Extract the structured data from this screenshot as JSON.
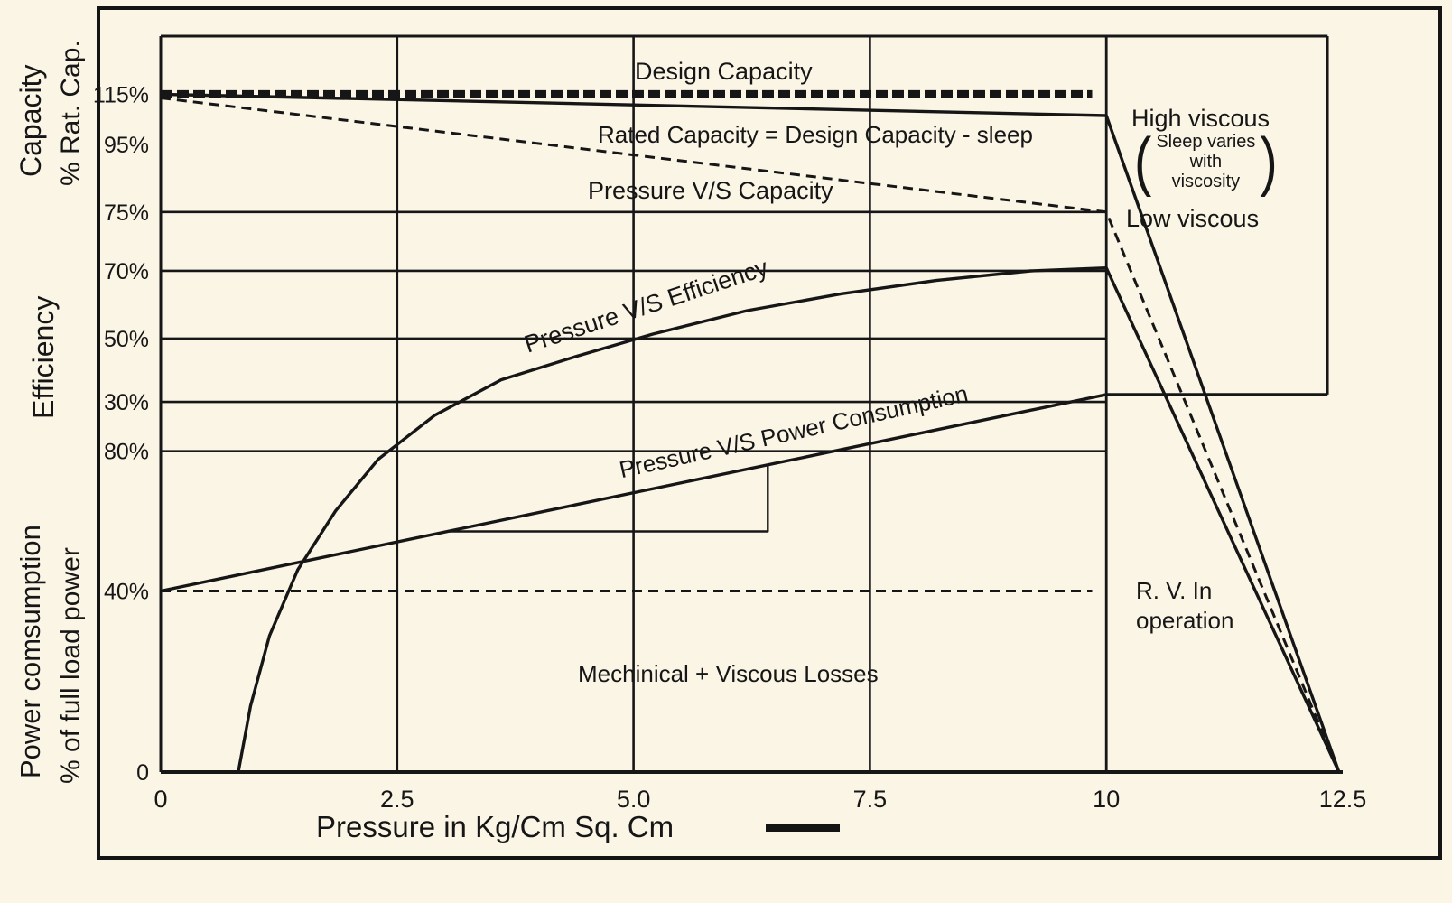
{
  "page": {
    "bg": "#fbf5e6",
    "ink": "#161616"
  },
  "axis": {
    "x_label": "Pressure in Kg/Cm Sq. Cm",
    "left_labels": {
      "capacity_1": "Capacity",
      "capacity_2": "% Rat. Cap.",
      "efficiency": "Efficiency",
      "power_1": "Power comsumption",
      "power_2": "% of full load power"
    }
  },
  "annotations": {
    "design_capacity": "Design Capacity",
    "rated_capacity": "Rated Capacity = Design Capacity - sleep",
    "pressure_vs_capacity": "Pressure V/S Capacity",
    "high_viscous": "High viscous",
    "paren_open": "(",
    "paren_close": ")",
    "sleep_note_1": "Sleep varies",
    "sleep_note_2": "with",
    "sleep_note_3": "viscosity",
    "low_viscous": "Low viscous",
    "pressure_vs_efficiency": "Pressure V/S Efficiency",
    "pressure_vs_power": "Pressure V/S Power Consumption",
    "rv_line_1": "R. V. In",
    "rv_line_2": "operation",
    "mech_losses": "Mechinical + Viscous Losses"
  },
  "chart_data": {
    "type": "line",
    "title": "Pump performance: pressure vs capacity, efficiency and power consumption",
    "xlabel": "Pressure in Kg/Cm Sq. Cm",
    "x_range": [
      0,
      12.5
    ],
    "x_ticks": [
      {
        "x": 0,
        "label": "0"
      },
      {
        "x": 2.5,
        "label": "2.5"
      },
      {
        "x": 5.0,
        "label": "5.0"
      },
      {
        "x": 7.5,
        "label": "7.5"
      },
      {
        "x": 10,
        "label": "10"
      },
      {
        "x": 12.5,
        "label": "12.5"
      }
    ],
    "y_ticks": [
      {
        "pos": 0.921,
        "label": "115%",
        "scale": "capacity"
      },
      {
        "pos": 0.853,
        "label": "95%",
        "scale": "capacity"
      },
      {
        "pos": 0.761,
        "label": "75%",
        "scale": "capacity"
      },
      {
        "pos": 0.681,
        "label": "70%",
        "scale": "efficiency"
      },
      {
        "pos": 0.589,
        "label": "50%",
        "scale": "efficiency"
      },
      {
        "pos": 0.503,
        "label": "30%",
        "scale": "efficiency"
      },
      {
        "pos": 0.436,
        "label": "80%",
        "scale": "power"
      },
      {
        "pos": 0.246,
        "label": "40%",
        "scale": "power"
      },
      {
        "pos": 0.0,
        "label": "0",
        "scale": "power"
      }
    ],
    "gridlines": {
      "h": [
        {
          "pos": 1.0,
          "x0": 0,
          "x1": 12.34,
          "w": 3
        },
        {
          "pos": 0.761,
          "x0": 0,
          "x1": 10,
          "w": 2.6
        },
        {
          "pos": 0.681,
          "x0": 0,
          "x1": 10,
          "w": 2.6
        },
        {
          "pos": 0.589,
          "x0": 0,
          "x1": 10,
          "w": 2.6
        },
        {
          "pos": 0.503,
          "x0": 0,
          "x1": 10,
          "w": 2.6
        },
        {
          "pos": 0.436,
          "x0": 0,
          "x1": 10,
          "w": 2.6
        },
        {
          "pos": 0.0,
          "x0": 0,
          "x1": 12.5,
          "w": 4
        }
      ],
      "v": [
        {
          "x": 0,
          "p0": 0,
          "p1": 1.0,
          "w": 3
        },
        {
          "x": 2.5,
          "p0": 0,
          "p1": 1.0,
          "w": 2.6
        },
        {
          "x": 5.0,
          "p0": 0,
          "p1": 1.0,
          "w": 2.6
        },
        {
          "x": 7.5,
          "p0": 0,
          "p1": 1.0,
          "w": 2.6
        },
        {
          "x": 10,
          "p0": 0,
          "p1": 1.0,
          "w": 2.8
        },
        {
          "x": 12.34,
          "p0": 0.513,
          "p1": 1.0,
          "w": 2.6
        }
      ]
    },
    "series": [
      {
        "name": "design-capacity",
        "label": "Design Capacity",
        "style": "dotted-thick",
        "points": [
          [
            0,
            0.921
          ],
          [
            9.85,
            0.921
          ]
        ]
      },
      {
        "name": "rated-capacity",
        "label": "Rated Capacity = Design Capacity - sleep (High viscous)",
        "style": "solid",
        "points": [
          [
            0,
            0.921
          ],
          [
            10,
            0.892
          ],
          [
            12.46,
            0
          ]
        ]
      },
      {
        "name": "pressure-vs-capacity",
        "label": "Pressure V/S Capacity (Low viscous)",
        "style": "dashed",
        "points": [
          [
            0,
            0.916
          ],
          [
            10,
            0.761
          ],
          [
            12.46,
            0
          ]
        ]
      },
      {
        "name": "pressure-vs-efficiency",
        "label": "Pressure V/S Efficiency",
        "style": "solid",
        "points": [
          [
            0.82,
            0
          ],
          [
            0.95,
            0.09
          ],
          [
            1.15,
            0.185
          ],
          [
            1.45,
            0.275
          ],
          [
            1.85,
            0.355
          ],
          [
            2.3,
            0.425
          ],
          [
            2.9,
            0.485
          ],
          [
            3.6,
            0.533
          ],
          [
            4.4,
            0.565
          ],
          [
            5.2,
            0.595
          ],
          [
            6.2,
            0.627
          ],
          [
            7.2,
            0.65
          ],
          [
            8.2,
            0.668
          ],
          [
            9.2,
            0.681
          ],
          [
            10,
            0.685
          ],
          [
            12.46,
            0
          ]
        ]
      },
      {
        "name": "pressure-vs-power",
        "label": "Pressure V/S Power Consumption",
        "style": "solid",
        "points": [
          [
            0,
            0.246
          ],
          [
            10,
            0.513
          ],
          [
            12.34,
            0.513
          ]
        ]
      },
      {
        "name": "step-line",
        "label": "",
        "style": "solid-thin",
        "points": [
          [
            3.05,
            0.327
          ],
          [
            6.42,
            0.327
          ],
          [
            6.42,
            0.418
          ]
        ]
      },
      {
        "name": "rv-in-operation",
        "label": "R. V. In operation",
        "style": "dashed",
        "points": [
          [
            0,
            0.246
          ],
          [
            9.85,
            0.246
          ]
        ]
      }
    ],
    "legend_position": "none",
    "grid": true
  }
}
